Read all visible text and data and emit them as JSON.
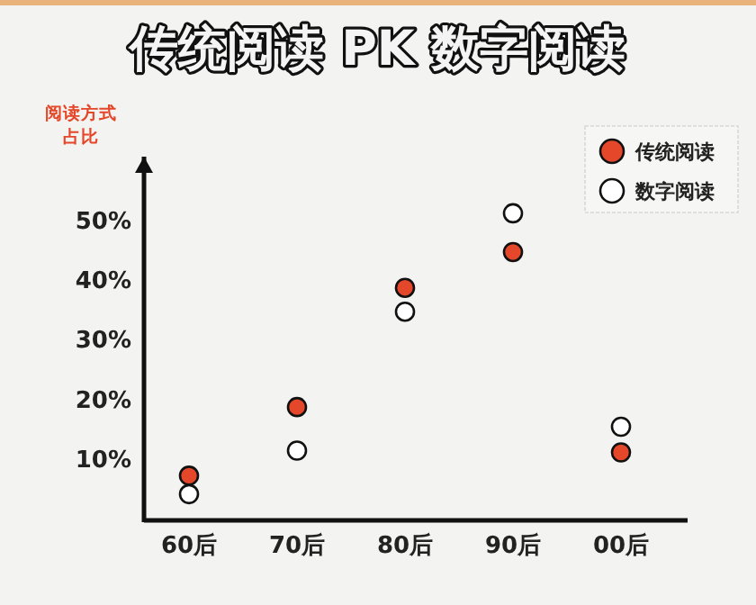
{
  "chart_data": {
    "type": "scatter",
    "title": "传统阅读 PK 数字阅读",
    "ylabel": "阅读方式占比",
    "categories": [
      "60后",
      "70后",
      "80后",
      "90后",
      "00后"
    ],
    "series": [
      {
        "name": "传统阅读",
        "color": "#e5472a",
        "values": [
          7.5,
          19,
          39,
          45,
          11.4
        ]
      },
      {
        "name": "数字阅读",
        "color": "#ffffff",
        "values": [
          4.4,
          11.7,
          35,
          51.5,
          15.7
        ]
      }
    ],
    "ylim": [
      0,
      61
    ],
    "yticks": [
      {
        "value": 10,
        "label": "10%"
      },
      {
        "value": 20,
        "label": "20%"
      },
      {
        "value": 30,
        "label": "30%"
      },
      {
        "value": 40,
        "label": "40%"
      },
      {
        "value": 50,
        "label": "50%"
      }
    ],
    "marker": "circle",
    "legend": "top right",
    "grid": false
  }
}
